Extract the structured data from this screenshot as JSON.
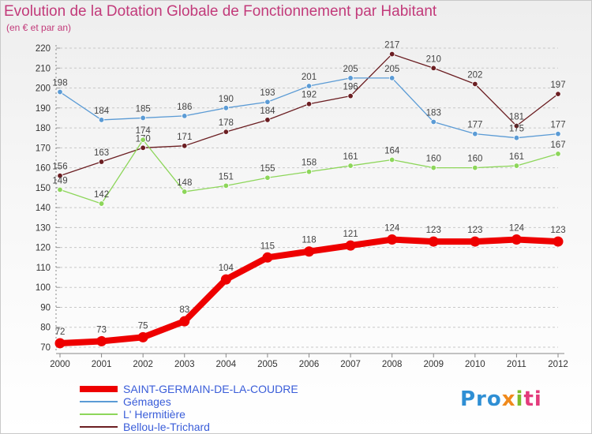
{
  "title": "Evolution de la Dotation Globale de Fonctionnement par Habitant",
  "subtitle": "(en € et par an)",
  "logo_text": "Proxiti",
  "colors": {
    "title": "#c23a7a",
    "legend_text": "#3a5dd9",
    "grid": "#c8c8c8"
  },
  "chart_data": {
    "type": "line",
    "title": "Evolution de la Dotation Globale de Fonctionnement par Habitant",
    "subtitle": "(en € et par an)",
    "xlabel": "",
    "ylabel": "",
    "x": [
      "2000",
      "2001",
      "2002",
      "2003",
      "2004",
      "2005",
      "2006",
      "2007",
      "2008",
      "2009",
      "2010",
      "2011",
      "2012"
    ],
    "yticks": [
      70,
      80,
      90,
      100,
      110,
      120,
      130,
      140,
      150,
      160,
      170,
      180,
      190,
      200,
      210,
      220
    ],
    "ylim": [
      70,
      220
    ],
    "grid": "horizontal dashed",
    "legend_position": "bottom-left",
    "series": [
      {
        "name": "SAINT-GERMAIN-DE-LA-COUDRE",
        "color": "#ee0000",
        "emphasis": true,
        "values": [
          72,
          73,
          75,
          83,
          104,
          115,
          118,
          121,
          124,
          123,
          123,
          124,
          123
        ]
      },
      {
        "name": "Gémages",
        "color": "#5b9bd5",
        "values": [
          198,
          184,
          185,
          186,
          190,
          193,
          201,
          205,
          205,
          183,
          177,
          175,
          177
        ]
      },
      {
        "name": "L' Hermitière",
        "color": "#8dd65a",
        "values": [
          149,
          142,
          174,
          148,
          151,
          155,
          158,
          161,
          164,
          160,
          160,
          161,
          167
        ]
      },
      {
        "name": "Bellou-le-Trichard",
        "color": "#6b1e22",
        "values": [
          156,
          163,
          170,
          171,
          178,
          184,
          192,
          196,
          217,
          210,
          202,
          181,
          197
        ]
      }
    ]
  }
}
